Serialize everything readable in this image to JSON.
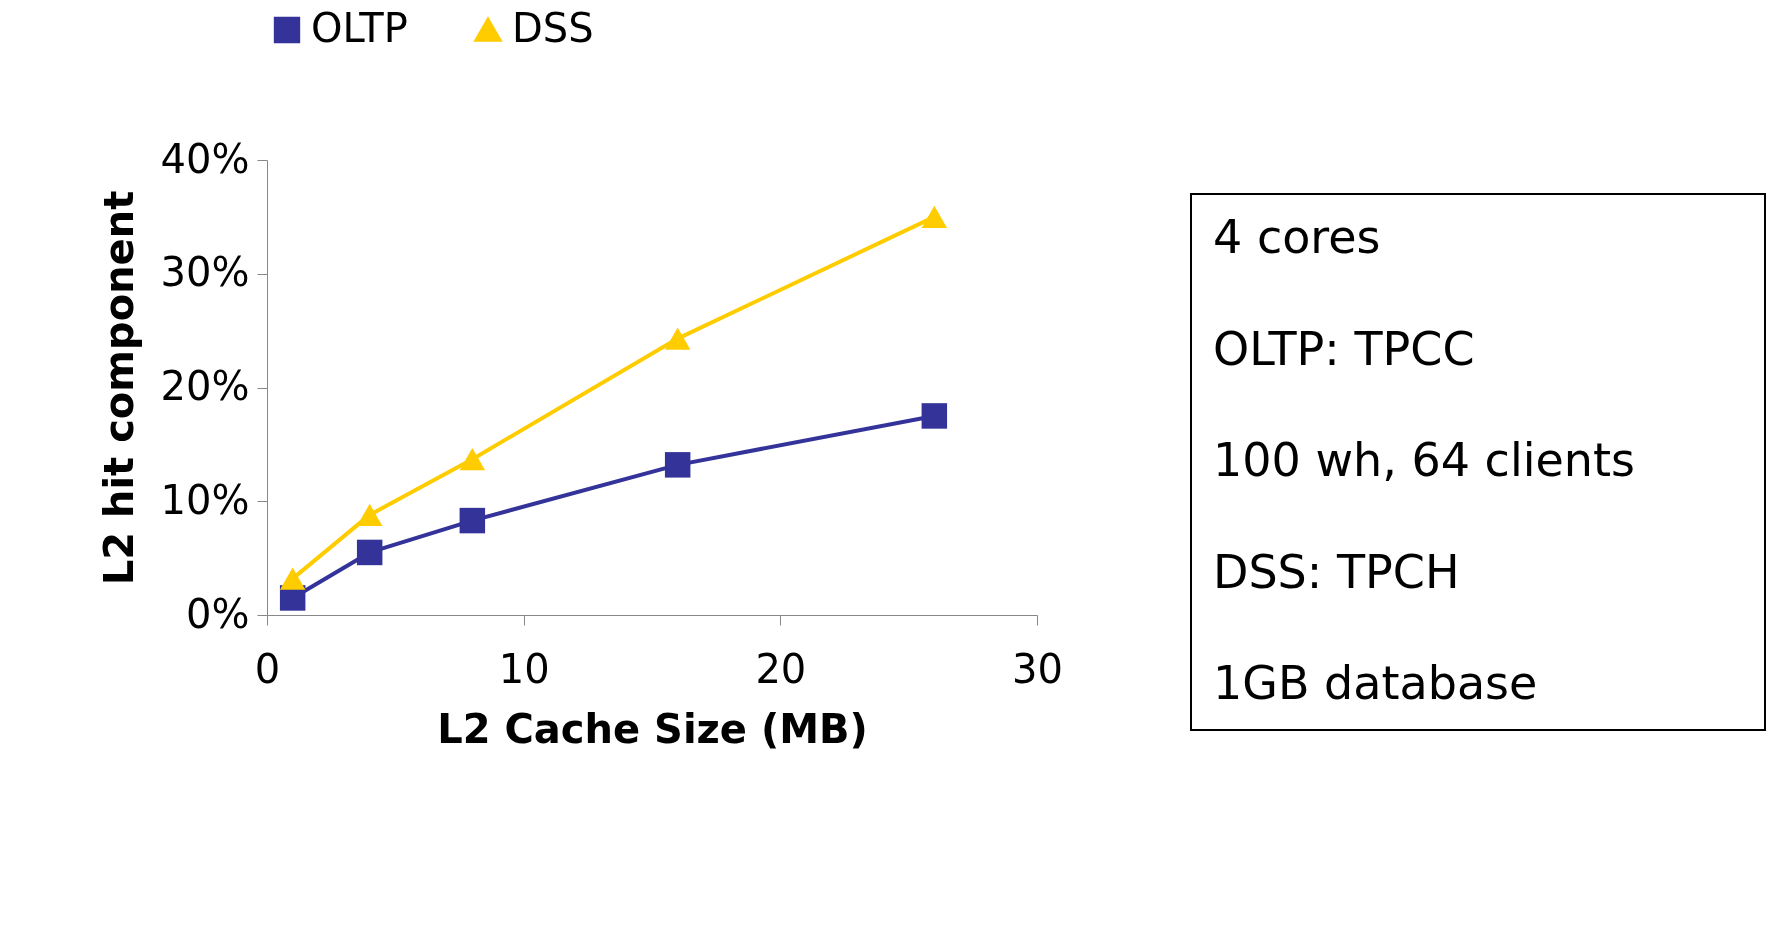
{
  "chart_data": {
    "type": "line",
    "xlabel": "L2 Cache Size (MB)",
    "ylabel": "L2 hit component",
    "x": [
      1,
      4,
      8,
      16,
      26
    ],
    "series": [
      {
        "name": "OLTP",
        "color": "#333399",
        "marker": "square",
        "values": [
          1.5,
          5.5,
          8.3,
          13.2,
          17.5
        ]
      },
      {
        "name": "DSS",
        "color": "#ffcc00",
        "marker": "triangle",
        "values": [
          3.2,
          8.8,
          13.7,
          24.3,
          35.0
        ]
      }
    ],
    "xlim": [
      0,
      30
    ],
    "xticks": [
      0,
      10,
      20,
      30
    ],
    "ylim": [
      0,
      40
    ],
    "yticks": [
      {
        "value": 0,
        "label": "0%"
      },
      {
        "value": 10,
        "label": "10%"
      },
      {
        "value": 20,
        "label": "20%"
      },
      {
        "value": 30,
        "label": "30%"
      },
      {
        "value": 40,
        "label": "40%"
      }
    ],
    "grid": false,
    "legend": "top left",
    "line_style": "solid",
    "annotations": [
      "4 cores",
      "OLTP: TPCC",
      "100 wh, 64 clients",
      "DSS: TPCH",
      "1GB database"
    ]
  }
}
